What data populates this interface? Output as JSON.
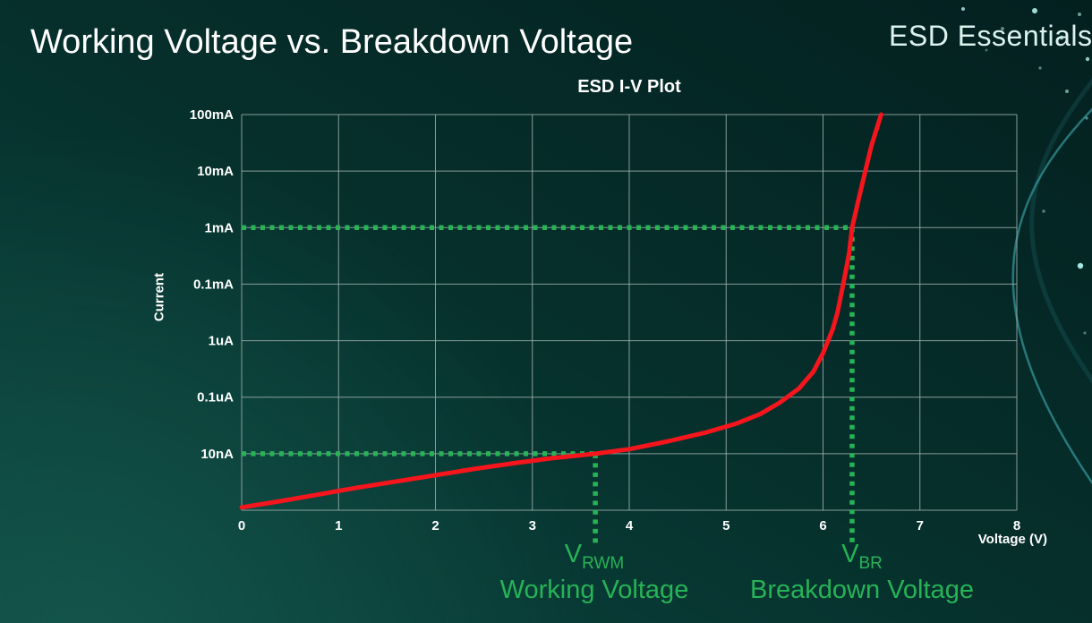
{
  "slide": {
    "title": "Working Voltage vs. Breakdown Voltage",
    "brand": "ESD Essentials"
  },
  "chart_data": {
    "type": "line",
    "title": "ESD I-V Plot",
    "xlabel": "Voltage (V)",
    "ylabel": "Current",
    "y_scale": "log",
    "grid": true,
    "x_ticks": [
      "0",
      "1",
      "2",
      "3",
      "4",
      "5",
      "6",
      "7",
      "8"
    ],
    "x_max": 8,
    "y_tick_labels": [
      "100mA",
      "10mA",
      "1mA",
      "0.1mA",
      "1uA",
      "0.1uA",
      "10nA"
    ],
    "series": [
      {
        "name": "ESD I-V curve",
        "color_key": "curve_red",
        "points_voltage_vs_decade_row_from_top": [
          [
            0,
            6.95
          ],
          [
            0.4,
            6.84
          ],
          [
            0.8,
            6.72
          ],
          [
            1.2,
            6.6
          ],
          [
            1.6,
            6.49
          ],
          [
            2,
            6.38
          ],
          [
            2.4,
            6.27
          ],
          [
            2.8,
            6.17
          ],
          [
            3.2,
            6.08
          ],
          [
            3.65,
            6.0
          ],
          [
            4,
            5.92
          ],
          [
            4.4,
            5.78
          ],
          [
            4.8,
            5.62
          ],
          [
            5.1,
            5.47
          ],
          [
            5.35,
            5.3
          ],
          [
            5.55,
            5.1
          ],
          [
            5.75,
            4.85
          ],
          [
            5.9,
            4.55
          ],
          [
            6.0,
            4.22
          ],
          [
            6.1,
            3.8
          ],
          [
            6.15,
            3.5
          ],
          [
            6.22,
            2.9
          ],
          [
            6.27,
            2.45
          ],
          [
            6.3,
            2.0
          ],
          [
            6.36,
            1.55
          ],
          [
            6.43,
            1.05
          ],
          [
            6.5,
            0.55
          ],
          [
            6.6,
            0
          ]
        ]
      }
    ],
    "annotations": [
      {
        "symbol": "V",
        "subscript": "RWM",
        "caption": "Working Voltage",
        "voltage": 3.65,
        "current_level": "10nA",
        "level_row": 6
      },
      {
        "symbol": "V",
        "subscript": "BR",
        "caption": "Breakdown Voltage",
        "voltage": 6.3,
        "current_level": "1mA",
        "level_row": 2
      }
    ],
    "colors": {
      "curve_red": "#f5151d",
      "marker_green": "#27b356",
      "grid": "#9fb0ae",
      "text": "#ffffff"
    }
  }
}
